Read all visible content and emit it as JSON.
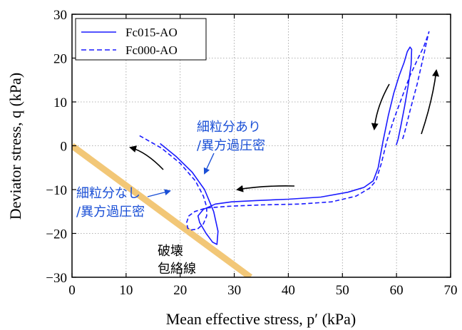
{
  "colors": {
    "series": "#1a1aff",
    "envelope": "#f2c777",
    "annotation_blue": "#1a4fd6",
    "grid": "#9a9a9a"
  },
  "chart_data": {
    "type": "line",
    "xlabel": "Mean effective stress, p′ (kPa)",
    "ylabel": "Deviator stress, q (kPa)",
    "xlim": [
      0,
      70
    ],
    "ylim": [
      -30,
      30
    ],
    "x_ticks": [
      "0",
      "10",
      "20",
      "30",
      "40",
      "50",
      "60",
      "70"
    ],
    "y_ticks": [
      "−30",
      "−20",
      "−10",
      "0",
      "10",
      "20",
      "30"
    ],
    "grid": true,
    "legend_position": "top-left",
    "series": [
      {
        "name": "Fc015-AO",
        "style": "solid",
        "x": [
          16.3,
          19.3,
          22.2,
          24.5,
          26.2,
          27.0,
          26.8,
          26.0,
          24.8,
          23.6,
          23.3,
          24.3,
          26.5,
          29.5,
          34,
          40,
          46,
          51,
          54,
          55.7,
          56.6,
          57.5,
          58.5,
          59.5,
          60.5,
          61.4,
          62.0,
          62.5,
          62.8,
          62.7,
          62.2,
          61.5,
          60.8,
          60.3,
          60.0,
          59.9
        ],
        "y": [
          0.5,
          -2.5,
          -6,
          -10,
          -15,
          -19.5,
          -22.5,
          -22,
          -20,
          -17.5,
          -16,
          -14.5,
          -13.3,
          -12.8,
          -12.5,
          -12.2,
          -11.7,
          -10.6,
          -9.5,
          -8.0,
          -5.0,
          1,
          7,
          12,
          16,
          19,
          21.5,
          22.5,
          22.0,
          18.5,
          14,
          9,
          4.5,
          1.5,
          0.3,
          0.2
        ],
        "color": "#1a1aff"
      },
      {
        "name": "Fc000-AO",
        "style": "dashed",
        "x": [
          12.5,
          16.5,
          20.0,
          22.8,
          24.3,
          24.9,
          24.9,
          24.3,
          23.2,
          22.1,
          21.4,
          21.2,
          21.6,
          22.7,
          24.8,
          29,
          35,
          42,
          48,
          52.5,
          55.0,
          56.2,
          57.2,
          58.2,
          59.5,
          61.0,
          62.5,
          64.0,
          65.0,
          65.6,
          66.0,
          65.8,
          65.0,
          63.8,
          62.5,
          61.5,
          61.0
        ],
        "y": [
          2.3,
          -0.5,
          -4,
          -8,
          -11.5,
          -14,
          -16,
          -17.8,
          -19,
          -19.2,
          -18.8,
          -17.5,
          -16,
          -15,
          -14.2,
          -13.8,
          -13.5,
          -13.3,
          -12.8,
          -11.5,
          -9.7,
          -8.0,
          -4,
          1,
          6,
          11,
          16,
          20,
          22.5,
          24.5,
          26.0,
          25.0,
          20.5,
          14,
          8,
          3,
          1
        ]
      }
    ],
    "envelope_line": {
      "x": [
        0,
        33
      ],
      "y": [
        0,
        -30
      ],
      "color": "#f2c777"
    },
    "annotations": [
      {
        "text_lines": [
          "細粒分あり",
          "/異方過圧密"
        ],
        "color": "#1a4fd6"
      },
      {
        "text_lines": [
          "細粒分なし",
          "/異方過圧密"
        ],
        "color": "#1a4fd6"
      },
      {
        "text_lines": [
          "破壊",
          "包絡線"
        ],
        "color": "#000000"
      }
    ]
  }
}
